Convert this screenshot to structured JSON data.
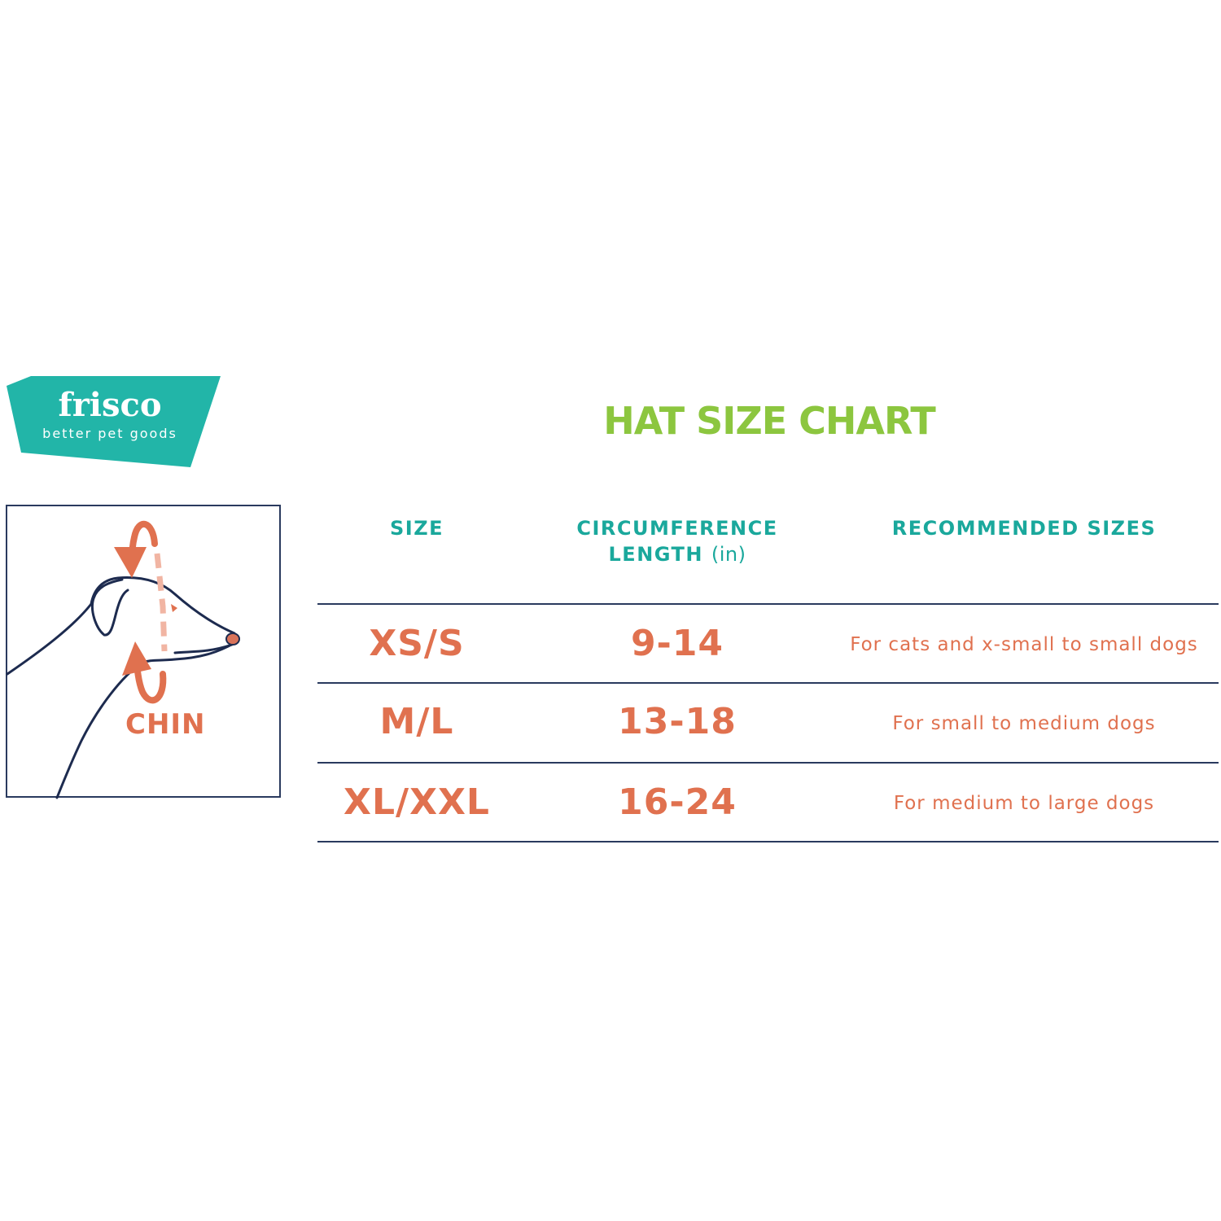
{
  "brand": {
    "name": "frisco",
    "tagline": "better pet goods",
    "color": "#22b5a8"
  },
  "illustration": {
    "label": "CHIN",
    "line_color": "#1d2b4f",
    "accent_color": "#e0714f"
  },
  "title": "HAT SIZE CHART",
  "colors": {
    "title": "#8cc63f",
    "header": "#1aa89c",
    "values": "#e0714f",
    "rules": "#2a3a5e"
  },
  "table": {
    "headers": {
      "size": "SIZE",
      "circumference_line1": "CIRCUMFERENCE",
      "circumference_line2": "LENGTH",
      "circumference_unit": "(in)",
      "recommended": "RECOMMENDED SIZES"
    },
    "rows": [
      {
        "size": "XS/S",
        "length": "9-14",
        "recommended": "For cats and x-small to small dogs"
      },
      {
        "size": "M/L",
        "length": "13-18",
        "recommended": "For small to medium dogs"
      },
      {
        "size": "XL/XXL",
        "length": "16-24",
        "recommended": "For medium to large dogs"
      }
    ]
  }
}
